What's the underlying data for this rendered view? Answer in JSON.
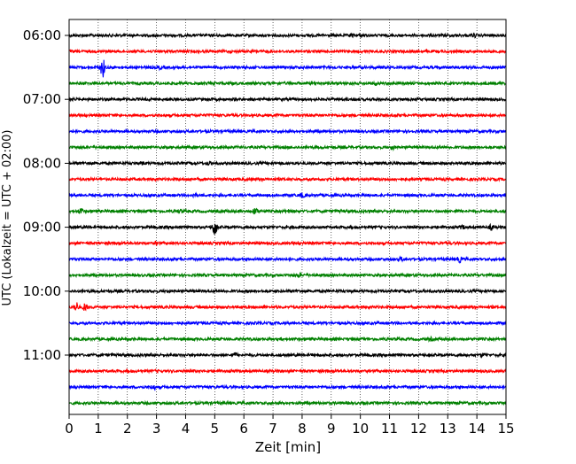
{
  "chart_data": {
    "type": "line",
    "title": "",
    "xlabel": "Zeit  [min]",
    "ylabel": "UTC (Lokalzeit = UTC + 02:00)",
    "xlim": [
      0,
      15
    ],
    "x_ticks": [
      "0",
      "1",
      "2",
      "3",
      "4",
      "5",
      "6",
      "7",
      "8",
      "9",
      "10",
      "11",
      "12",
      "13",
      "14",
      "15"
    ],
    "y_ticks": [
      "06:00",
      "07:00",
      "08:00",
      "09:00",
      "10:00",
      "11:00"
    ],
    "grid": "vertical dotted lines at each minute",
    "trace_interval_min": 15,
    "start_time": "06:00",
    "color_cycle": [
      "#000000",
      "#ff0000",
      "#0000ff",
      "#008000"
    ],
    "traces": [
      {
        "time": "06:00",
        "color": "#000000",
        "events": [
          {
            "minute": 9.7,
            "amp": 1.3
          },
          {
            "minute": 13.9,
            "amp": 1.8
          }
        ]
      },
      {
        "time": "06:15",
        "color": "#ff0000",
        "events": []
      },
      {
        "time": "06:30",
        "color": "#0000ff",
        "events": [
          {
            "minute": 1.15,
            "amp": 11
          },
          {
            "minute": 3.1,
            "amp": 1.2
          }
        ]
      },
      {
        "time": "06:45",
        "color": "#008000",
        "events": [
          {
            "minute": 10.5,
            "amp": 1.5
          }
        ]
      },
      {
        "time": "07:00",
        "color": "#000000",
        "events": []
      },
      {
        "time": "07:15",
        "color": "#ff0000",
        "events": []
      },
      {
        "time": "07:30",
        "color": "#0000ff",
        "events": []
      },
      {
        "time": "07:45",
        "color": "#008000",
        "events": [
          {
            "minute": 11.1,
            "amp": 1.5
          }
        ]
      },
      {
        "time": "08:00",
        "color": "#000000",
        "events": [
          {
            "minute": 2.5,
            "amp": 1.4
          },
          {
            "minute": 4.8,
            "amp": 1.3
          }
        ]
      },
      {
        "time": "08:15",
        "color": "#ff0000",
        "events": []
      },
      {
        "time": "08:30",
        "color": "#0000ff",
        "events": [
          {
            "minute": 4.3,
            "amp": 1.8
          },
          {
            "minute": 8.0,
            "amp": 2.2
          }
        ]
      },
      {
        "time": "08:45",
        "color": "#008000",
        "events": [
          {
            "minute": 0.4,
            "amp": 3.0
          },
          {
            "minute": 3.8,
            "amp": 1.5
          },
          {
            "minute": 6.4,
            "amp": 3.4
          },
          {
            "minute": 7.5,
            "amp": 1.4
          }
        ]
      },
      {
        "time": "09:00",
        "color": "#000000",
        "events": [
          {
            "minute": 5.0,
            "amp": 11
          },
          {
            "minute": 14.5,
            "amp": 2.6
          },
          {
            "minute": 13.5,
            "amp": 1.6
          }
        ]
      },
      {
        "time": "09:15",
        "color": "#ff0000",
        "events": [
          {
            "minute": 3.0,
            "amp": 1.2
          }
        ]
      },
      {
        "time": "09:30",
        "color": "#0000ff",
        "events": [
          {
            "minute": 11.4,
            "amp": 1.6
          },
          {
            "minute": 13.4,
            "amp": 2.6
          }
        ]
      },
      {
        "time": "09:45",
        "color": "#008000",
        "events": [
          {
            "minute": 7.9,
            "amp": 1.3
          }
        ]
      },
      {
        "time": "10:00",
        "color": "#000000",
        "events": []
      },
      {
        "time": "10:15",
        "color": "#ff0000",
        "events": [
          {
            "minute": 0.25,
            "amp": 4.8
          },
          {
            "minute": 0.55,
            "amp": 4.0
          }
        ]
      },
      {
        "time": "10:30",
        "color": "#0000ff",
        "events": []
      },
      {
        "time": "10:45",
        "color": "#008000",
        "events": [
          {
            "minute": 12.4,
            "amp": 1.3
          }
        ]
      },
      {
        "time": "11:00",
        "color": "#000000",
        "events": [
          {
            "minute": 5.7,
            "amp": 1.6
          },
          {
            "minute": 14.2,
            "amp": 1.3
          }
        ]
      },
      {
        "time": "11:15",
        "color": "#ff0000",
        "events": []
      },
      {
        "time": "11:30",
        "color": "#0000ff",
        "events": [
          {
            "minute": 2.9,
            "amp": 2.6
          }
        ]
      },
      {
        "time": "11:45",
        "color": "#008000",
        "events": []
      }
    ]
  }
}
